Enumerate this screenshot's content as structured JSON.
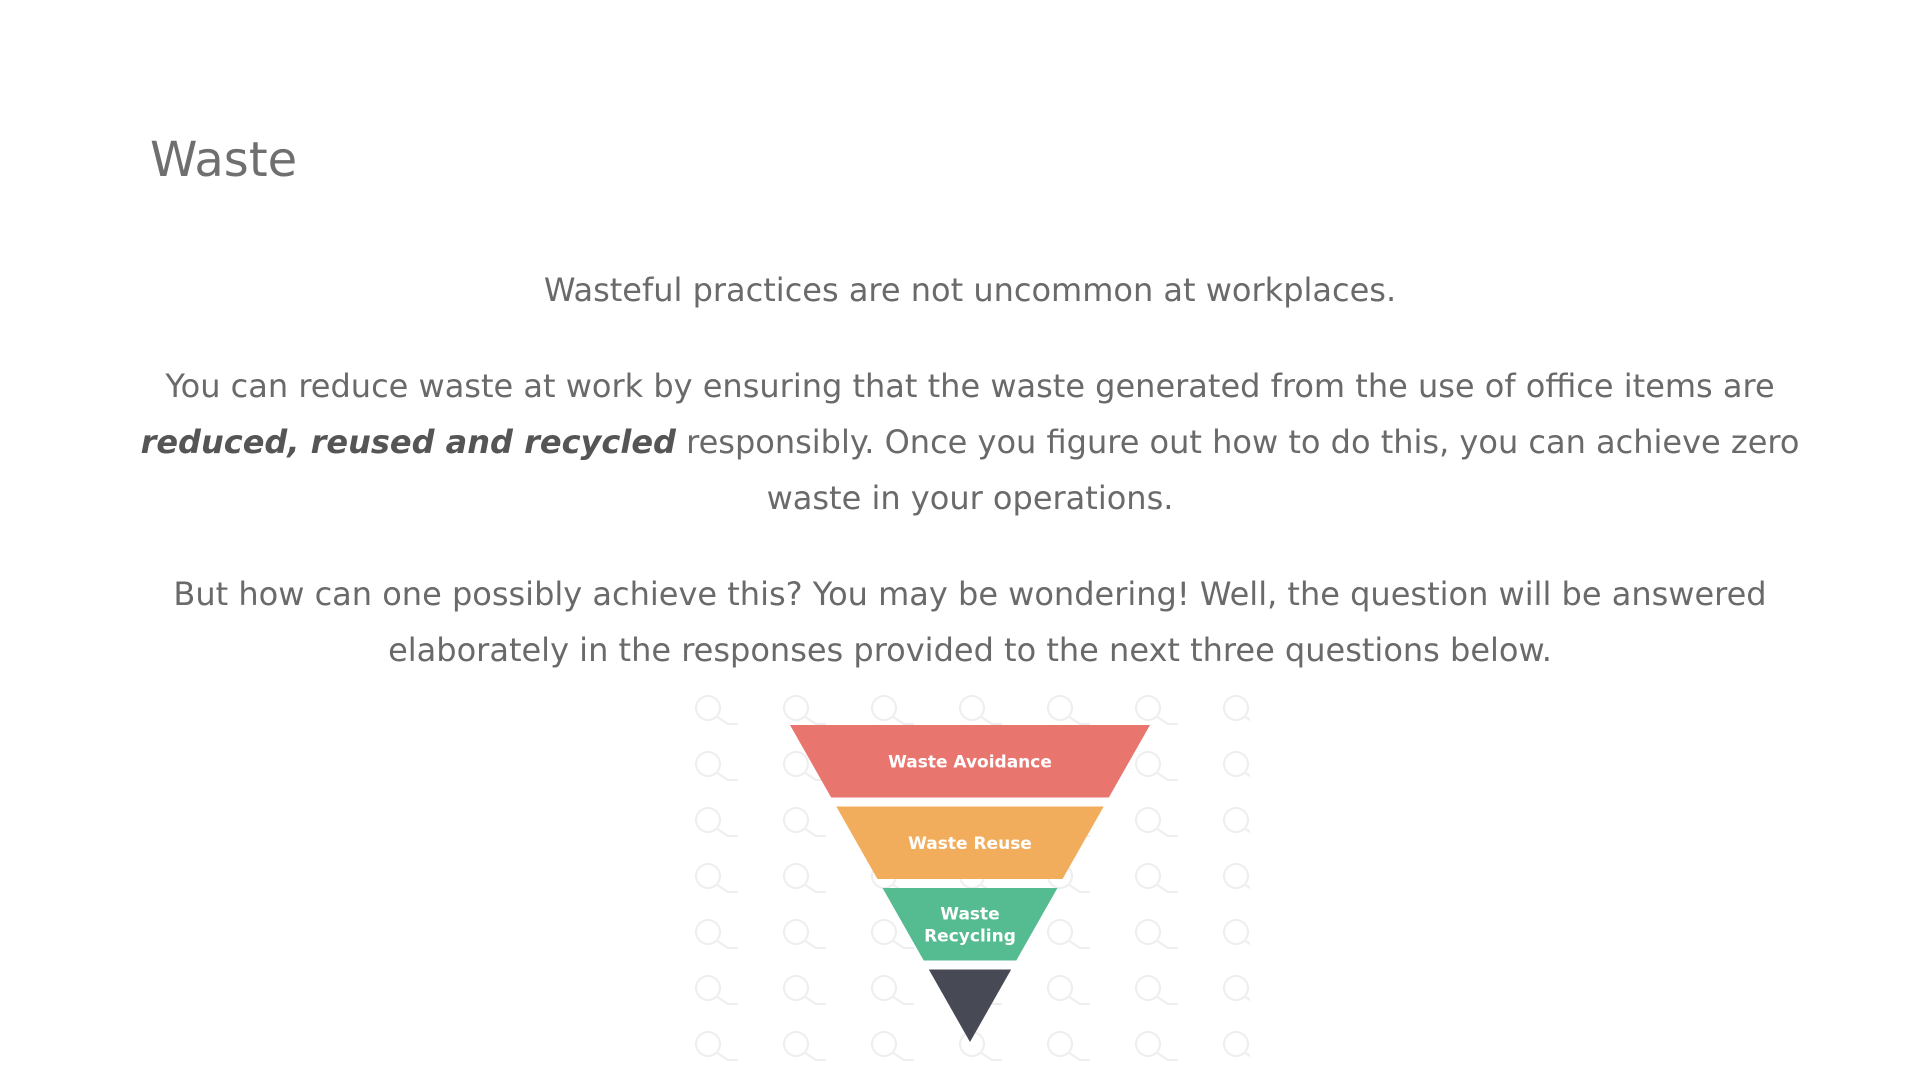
{
  "slide": {
    "title": "Waste",
    "paragraph1": "Wasteful practices are not uncommon at workplaces.",
    "paragraph2": {
      "before": "You can reduce waste at work by ensuring that the waste generated from the use of office items are ",
      "emphasis": "reduced, reused and recycled",
      "after": " responsibly. Once you figure out how to do this, you can achieve zero waste in your operations."
    },
    "paragraph3": "But how can one possibly achieve this? You may be wondering! Well, the question will be answered elaborately in the responses provided to the next three questions below."
  },
  "pyramid": {
    "tiers": [
      {
        "label_lines": [
          "Waste Avoidance"
        ],
        "color": "#e9756f"
      },
      {
        "label_lines": [
          "Waste Reuse"
        ],
        "color": "#f2ad5c"
      },
      {
        "label_lines": [
          "Waste",
          "Recycling"
        ],
        "color": "#55bb91"
      },
      {
        "label_lines": [],
        "color": "#474a55"
      }
    ],
    "watermark_icon": "watermark-logo-icon"
  }
}
